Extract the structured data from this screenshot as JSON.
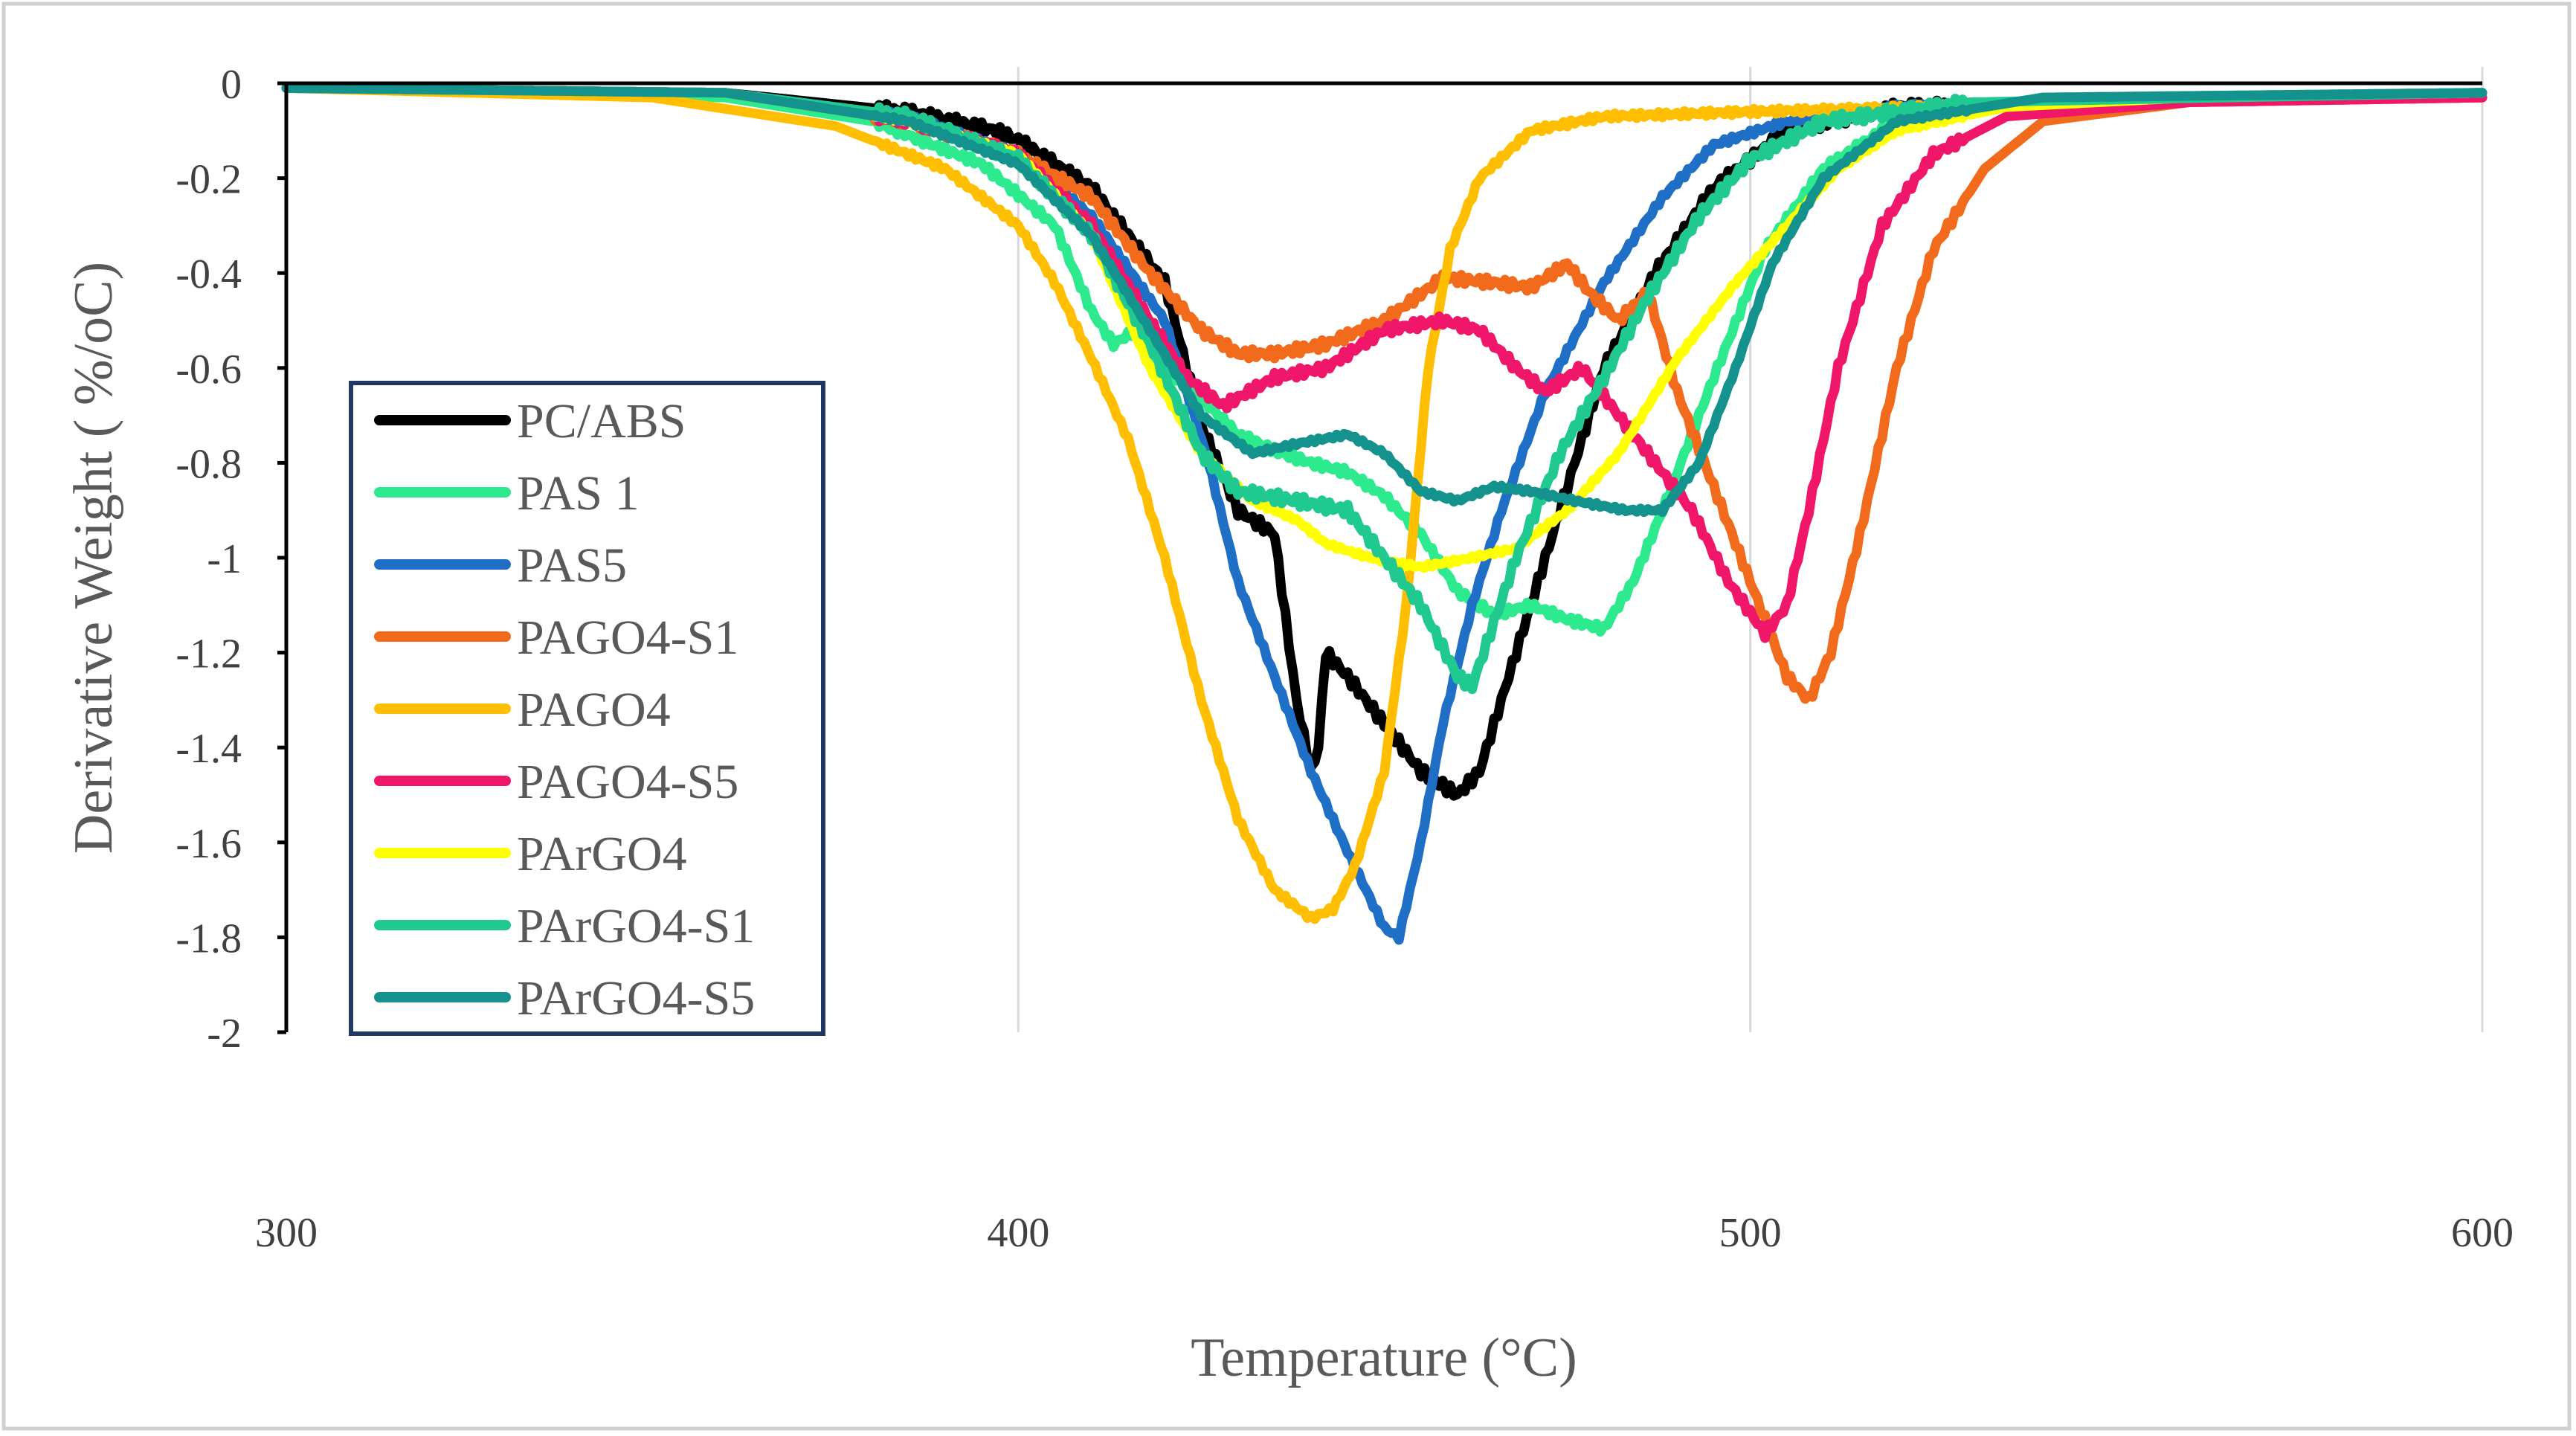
{
  "chart_data": {
    "type": "line",
    "title": "",
    "xlabel": "Temperature (°C)",
    "ylabel": "Derivative Weight ( %/oC)",
    "xlim": [
      300,
      600
    ],
    "ylim": [
      -2,
      0
    ],
    "x_ticks": [
      "300",
      "400",
      "500",
      "600"
    ],
    "y_ticks": [
      "0",
      "-0.2",
      "-0.4",
      "-0.6",
      "-0.8",
      "-1",
      "-1.2",
      "-1.4",
      "-1.6",
      "-1.8",
      "-2"
    ],
    "x_tick_values": [
      300,
      400,
      500,
      600
    ],
    "y_tick_values": [
      0,
      -0.2,
      -0.4,
      -0.6,
      -0.8,
      -1,
      -1.2,
      -1.4,
      -1.6,
      -1.8,
      -2
    ],
    "grid": "vertical",
    "legend_position": "left",
    "series": [
      {
        "name": "PC/ABS",
        "color": "#000000",
        "points": [
          [
            300,
            -0.01
          ],
          [
            360,
            -0.02
          ],
          [
            385,
            -0.06
          ],
          [
            397,
            -0.1
          ],
          [
            400,
            -0.12
          ],
          [
            410,
            -0.22
          ],
          [
            420,
            -0.42
          ],
          [
            425,
            -0.72
          ],
          [
            430,
            -0.9
          ],
          [
            435,
            -0.95
          ],
          [
            438,
            -1.3
          ],
          [
            440,
            -1.45
          ],
          [
            441,
            -1.4
          ],
          [
            442,
            -1.2
          ],
          [
            445,
            -1.25
          ],
          [
            450,
            -1.35
          ],
          [
            455,
            -1.45
          ],
          [
            460,
            -1.5
          ],
          [
            463,
            -1.45
          ],
          [
            466,
            -1.3
          ],
          [
            470,
            -1.1
          ],
          [
            475,
            -0.85
          ],
          [
            480,
            -0.6
          ],
          [
            487,
            -0.4
          ],
          [
            495,
            -0.22
          ],
          [
            505,
            -0.1
          ],
          [
            520,
            -0.05
          ],
          [
            550,
            -0.04
          ],
          [
            600,
            -0.03
          ]
        ]
      },
      {
        "name": "PAS 1",
        "color": "#2eea8e",
        "points": [
          [
            300,
            -0.01
          ],
          [
            360,
            -0.03
          ],
          [
            380,
            -0.08
          ],
          [
            395,
            -0.17
          ],
          [
            405,
            -0.3
          ],
          [
            410,
            -0.48
          ],
          [
            413,
            -0.55
          ],
          [
            416,
            -0.52
          ],
          [
            420,
            -0.6
          ],
          [
            426,
            -0.68
          ],
          [
            430,
            -0.74
          ],
          [
            436,
            -0.78
          ],
          [
            440,
            -0.8
          ],
          [
            445,
            -0.82
          ],
          [
            450,
            -0.87
          ],
          [
            455,
            -0.95
          ],
          [
            460,
            -1.07
          ],
          [
            465,
            -1.12
          ],
          [
            470,
            -1.1
          ],
          [
            475,
            -1.13
          ],
          [
            480,
            -1.15
          ],
          [
            484,
            -1.05
          ],
          [
            488,
            -0.9
          ],
          [
            495,
            -0.62
          ],
          [
            502,
            -0.35
          ],
          [
            510,
            -0.18
          ],
          [
            520,
            -0.08
          ],
          [
            540,
            -0.03
          ],
          [
            600,
            -0.02
          ]
        ]
      },
      {
        "name": "PAS5",
        "color": "#1f6fc6",
        "points": [
          [
            300,
            -0.01
          ],
          [
            360,
            -0.02
          ],
          [
            385,
            -0.07
          ],
          [
            400,
            -0.15
          ],
          [
            410,
            -0.28
          ],
          [
            420,
            -0.5
          ],
          [
            426,
            -0.8
          ],
          [
            430,
            -1.05
          ],
          [
            435,
            -1.25
          ],
          [
            440,
            -1.45
          ],
          [
            445,
            -1.62
          ],
          [
            450,
            -1.78
          ],
          [
            452,
            -1.8
          ],
          [
            455,
            -1.6
          ],
          [
            458,
            -1.35
          ],
          [
            462,
            -1.1
          ],
          [
            466,
            -0.9
          ],
          [
            472,
            -0.65
          ],
          [
            480,
            -0.42
          ],
          [
            488,
            -0.24
          ],
          [
            495,
            -0.13
          ],
          [
            505,
            -0.08
          ],
          [
            520,
            -0.05
          ],
          [
            560,
            -0.03
          ],
          [
            600,
            -0.02
          ]
        ]
      },
      {
        "name": "PAGO4-S1",
        "color": "#f26a1b",
        "points": [
          [
            300,
            -0.01
          ],
          [
            360,
            -0.02
          ],
          [
            385,
            -0.08
          ],
          [
            400,
            -0.15
          ],
          [
            410,
            -0.24
          ],
          [
            418,
            -0.4
          ],
          [
            425,
            -0.52
          ],
          [
            430,
            -0.57
          ],
          [
            435,
            -0.57
          ],
          [
            442,
            -0.55
          ],
          [
            450,
            -0.5
          ],
          [
            458,
            -0.41
          ],
          [
            465,
            -0.42
          ],
          [
            470,
            -0.43
          ],
          [
            475,
            -0.38
          ],
          [
            478,
            -0.44
          ],
          [
            482,
            -0.5
          ],
          [
            486,
            -0.44
          ],
          [
            490,
            -0.65
          ],
          [
            495,
            -0.85
          ],
          [
            500,
            -1.05
          ],
          [
            505,
            -1.25
          ],
          [
            508,
            -1.3
          ],
          [
            511,
            -1.2
          ],
          [
            515,
            -0.95
          ],
          [
            520,
            -0.6
          ],
          [
            525,
            -0.35
          ],
          [
            532,
            -0.18
          ],
          [
            540,
            -0.08
          ],
          [
            560,
            -0.04
          ],
          [
            600,
            -0.03
          ]
        ]
      },
      {
        "name": "PAGO4",
        "color": "#ffbf00",
        "points": [
          [
            300,
            -0.01
          ],
          [
            350,
            -0.03
          ],
          [
            375,
            -0.09
          ],
          [
            390,
            -0.18
          ],
          [
            400,
            -0.3
          ],
          [
            405,
            -0.42
          ],
          [
            410,
            -0.58
          ],
          [
            415,
            -0.75
          ],
          [
            420,
            -1.0
          ],
          [
            425,
            -1.3
          ],
          [
            430,
            -1.55
          ],
          [
            435,
            -1.7
          ],
          [
            440,
            -1.76
          ],
          [
            443,
            -1.74
          ],
          [
            446,
            -1.65
          ],
          [
            450,
            -1.45
          ],
          [
            453,
            -1.1
          ],
          [
            456,
            -0.6
          ],
          [
            459,
            -0.35
          ],
          [
            463,
            -0.2
          ],
          [
            470,
            -0.1
          ],
          [
            480,
            -0.07
          ],
          [
            500,
            -0.06
          ],
          [
            550,
            -0.04
          ],
          [
            600,
            -0.03
          ]
        ]
      },
      {
        "name": "PAGO4-S5",
        "color": "#f0166a",
        "points": [
          [
            300,
            -0.01
          ],
          [
            360,
            -0.02
          ],
          [
            385,
            -0.08
          ],
          [
            400,
            -0.15
          ],
          [
            410,
            -0.3
          ],
          [
            418,
            -0.5
          ],
          [
            423,
            -0.62
          ],
          [
            428,
            -0.68
          ],
          [
            435,
            -0.62
          ],
          [
            442,
            -0.6
          ],
          [
            450,
            -0.52
          ],
          [
            458,
            -0.5
          ],
          [
            463,
            -0.52
          ],
          [
            468,
            -0.6
          ],
          [
            472,
            -0.65
          ],
          [
            477,
            -0.6
          ],
          [
            482,
            -0.7
          ],
          [
            487,
            -0.8
          ],
          [
            492,
            -0.9
          ],
          [
            497,
            -1.05
          ],
          [
            502,
            -1.16
          ],
          [
            505,
            -1.1
          ],
          [
            508,
            -0.9
          ],
          [
            512,
            -0.6
          ],
          [
            518,
            -0.3
          ],
          [
            525,
            -0.15
          ],
          [
            535,
            -0.07
          ],
          [
            560,
            -0.04
          ],
          [
            600,
            -0.03
          ]
        ]
      },
      {
        "name": "PArGO4",
        "color": "#ffff00",
        "points": [
          [
            300,
            -0.01
          ],
          [
            360,
            -0.02
          ],
          [
            385,
            -0.08
          ],
          [
            400,
            -0.15
          ],
          [
            410,
            -0.32
          ],
          [
            418,
            -0.6
          ],
          [
            425,
            -0.78
          ],
          [
            432,
            -0.88
          ],
          [
            438,
            -0.92
          ],
          [
            442,
            -0.97
          ],
          [
            448,
            -1.0
          ],
          [
            455,
            -1.02
          ],
          [
            462,
            -1.0
          ],
          [
            468,
            -0.98
          ],
          [
            475,
            -0.9
          ],
          [
            482,
            -0.78
          ],
          [
            490,
            -0.58
          ],
          [
            498,
            -0.42
          ],
          [
            505,
            -0.3
          ],
          [
            512,
            -0.18
          ],
          [
            520,
            -0.1
          ],
          [
            535,
            -0.05
          ],
          [
            560,
            -0.03
          ],
          [
            600,
            -0.02
          ]
        ]
      },
      {
        "name": "PArGO4-S1",
        "color": "#1fc98f",
        "points": [
          [
            300,
            -0.01
          ],
          [
            360,
            -0.02
          ],
          [
            385,
            -0.07
          ],
          [
            400,
            -0.16
          ],
          [
            410,
            -0.32
          ],
          [
            418,
            -0.55
          ],
          [
            425,
            -0.78
          ],
          [
            430,
            -0.86
          ],
          [
            438,
            -0.88
          ],
          [
            445,
            -0.9
          ],
          [
            450,
            -1.0
          ],
          [
            455,
            -1.1
          ],
          [
            460,
            -1.25
          ],
          [
            462,
            -1.27
          ],
          [
            464,
            -1.18
          ],
          [
            468,
            -1.0
          ],
          [
            474,
            -0.78
          ],
          [
            480,
            -0.62
          ],
          [
            486,
            -0.45
          ],
          [
            493,
            -0.28
          ],
          [
            500,
            -0.16
          ],
          [
            510,
            -0.08
          ],
          [
            530,
            -0.04
          ],
          [
            600,
            -0.02
          ]
        ]
      },
      {
        "name": "PArGO4-S5",
        "color": "#14938e",
        "points": [
          [
            300,
            -0.01
          ],
          [
            360,
            -0.02
          ],
          [
            385,
            -0.08
          ],
          [
            400,
            -0.17
          ],
          [
            410,
            -0.32
          ],
          [
            418,
            -0.52
          ],
          [
            425,
            -0.7
          ],
          [
            432,
            -0.78
          ],
          [
            438,
            -0.76
          ],
          [
            445,
            -0.74
          ],
          [
            450,
            -0.78
          ],
          [
            455,
            -0.86
          ],
          [
            460,
            -0.88
          ],
          [
            465,
            -0.85
          ],
          [
            470,
            -0.86
          ],
          [
            476,
            -0.88
          ],
          [
            483,
            -0.9
          ],
          [
            488,
            -0.9
          ],
          [
            493,
            -0.8
          ],
          [
            498,
            -0.6
          ],
          [
            503,
            -0.38
          ],
          [
            510,
            -0.2
          ],
          [
            520,
            -0.08
          ],
          [
            540,
            -0.03
          ],
          [
            600,
            -0.02
          ]
        ]
      }
    ]
  }
}
